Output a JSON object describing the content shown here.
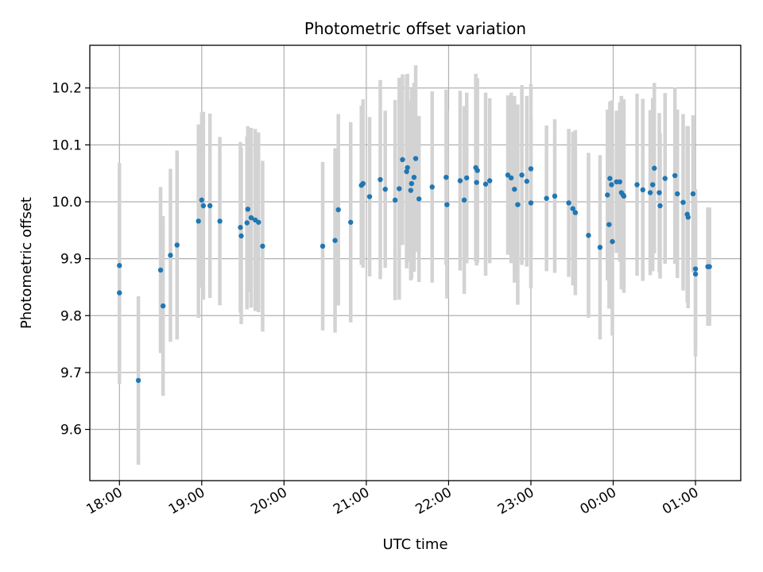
{
  "chart_data": {
    "type": "scatter",
    "title": "Photometric offset variation",
    "xlabel": "UTC time",
    "ylabel": "Photometric offset",
    "x_unit": "hours",
    "x_tick_values": [
      18,
      19,
      20,
      21,
      22,
      23,
      24,
      25
    ],
    "x_tick_labels": [
      "18:00",
      "19:00",
      "20:00",
      "21:00",
      "22:00",
      "23:00",
      "00:00",
      "01:00"
    ],
    "y_tick_values": [
      9.6,
      9.7,
      9.8,
      9.9,
      10.0,
      10.1,
      10.2
    ],
    "y_tick_labels": [
      "9.6",
      "9.7",
      "9.8",
      "9.9",
      "10.0",
      "10.1",
      "10.2"
    ],
    "xlim": [
      17.64,
      25.55
    ],
    "ylim": [
      9.51,
      10.275
    ],
    "grid": true,
    "point_color": "#1f77b4",
    "errorbar_color": "#d3d3d3",
    "points": [
      [
        18.0,
        9.84,
        0.16
      ],
      [
        18.0,
        9.888,
        0.18
      ],
      [
        18.23,
        9.686,
        0.148
      ],
      [
        18.5,
        9.88,
        0.146
      ],
      [
        18.53,
        9.817,
        0.158
      ],
      [
        18.62,
        9.906,
        0.152
      ],
      [
        18.7,
        9.924,
        0.166
      ],
      [
        18.96,
        9.966,
        0.17
      ],
      [
        19.0,
        10.003,
        0.154
      ],
      [
        19.02,
        9.993,
        0.165
      ],
      [
        19.1,
        9.993,
        0.162
      ],
      [
        19.22,
        9.966,
        0.148
      ],
      [
        19.47,
        9.955,
        0.15
      ],
      [
        19.48,
        9.94,
        0.155
      ],
      [
        19.55,
        9.963,
        0.152
      ],
      [
        19.56,
        9.987,
        0.146
      ],
      [
        19.6,
        9.972,
        0.158
      ],
      [
        19.65,
        9.968,
        0.16
      ],
      [
        19.69,
        9.964,
        0.158
      ],
      [
        19.74,
        9.922,
        0.15
      ],
      [
        20.47,
        9.922,
        0.148
      ],
      [
        20.62,
        9.932,
        0.162
      ],
      [
        20.66,
        9.986,
        0.168
      ],
      [
        20.81,
        9.964,
        0.176
      ],
      [
        20.94,
        10.029,
        0.14
      ],
      [
        20.96,
        10.032,
        0.148
      ],
      [
        21.04,
        10.009,
        0.14
      ],
      [
        21.17,
        10.039,
        0.175
      ],
      [
        21.23,
        10.022,
        0.138
      ],
      [
        21.35,
        10.003,
        0.176
      ],
      [
        21.4,
        10.023,
        0.195
      ],
      [
        21.44,
        10.074,
        0.15
      ],
      [
        21.49,
        10.053,
        0.17
      ],
      [
        21.5,
        10.06,
        0.165
      ],
      [
        21.54,
        10.02,
        0.158
      ],
      [
        21.55,
        10.032,
        0.168
      ],
      [
        21.58,
        10.043,
        0.166
      ],
      [
        21.6,
        10.076,
        0.164
      ],
      [
        21.64,
        10.005,
        0.146
      ],
      [
        21.8,
        10.026,
        0.168
      ],
      [
        21.97,
        10.043,
        0.154
      ],
      [
        21.98,
        9.995,
        0.165
      ],
      [
        22.14,
        10.037,
        0.158
      ],
      [
        22.19,
        10.003,
        0.165
      ],
      [
        22.22,
        10.042,
        0.15
      ],
      [
        22.33,
        10.06,
        0.165
      ],
      [
        22.35,
        10.055,
        0.162
      ],
      [
        22.34,
        10.034,
        0.146
      ],
      [
        22.45,
        10.031,
        0.161
      ],
      [
        22.5,
        10.037,
        0.145
      ],
      [
        22.72,
        10.047,
        0.14
      ],
      [
        22.76,
        10.042,
        0.15
      ],
      [
        22.8,
        10.022,
        0.164
      ],
      [
        22.84,
        9.995,
        0.176
      ],
      [
        22.89,
        10.047,
        0.158
      ],
      [
        22.95,
        10.036,
        0.15
      ],
      [
        23.0,
        10.058,
        0.149
      ],
      [
        23.0,
        9.998,
        0.15
      ],
      [
        23.19,
        10.006,
        0.128
      ],
      [
        23.29,
        10.01,
        0.135
      ],
      [
        23.46,
        9.998,
        0.13
      ],
      [
        23.51,
        9.988,
        0.135
      ],
      [
        23.54,
        9.981,
        0.145
      ],
      [
        23.7,
        9.941,
        0.145
      ],
      [
        23.84,
        9.92,
        0.162
      ],
      [
        23.93,
        10.012,
        0.15
      ],
      [
        23.95,
        9.96,
        0.148
      ],
      [
        23.96,
        10.041,
        0.135
      ],
      [
        23.98,
        10.03,
        0.148
      ],
      [
        23.99,
        9.93,
        0.165
      ],
      [
        24.04,
        10.035,
        0.125
      ],
      [
        24.08,
        10.035,
        0.14
      ],
      [
        24.1,
        10.016,
        0.17
      ],
      [
        24.12,
        10.012,
        0.145
      ],
      [
        24.13,
        10.01,
        0.17
      ],
      [
        24.29,
        10.03,
        0.16
      ],
      [
        24.36,
        10.021,
        0.16
      ],
      [
        24.45,
        10.016,
        0.145
      ],
      [
        24.48,
        10.03,
        0.152
      ],
      [
        24.5,
        10.059,
        0.15
      ],
      [
        24.56,
        10.016,
        0.14
      ],
      [
        24.57,
        9.993,
        0.128
      ],
      [
        24.63,
        10.041,
        0.15
      ],
      [
        24.75,
        10.046,
        0.155
      ],
      [
        24.78,
        10.014,
        0.148
      ],
      [
        24.85,
        9.999,
        0.155
      ],
      [
        24.9,
        9.978,
        0.155
      ],
      [
        24.91,
        9.973,
        0.16
      ],
      [
        24.97,
        10.014,
        0.138
      ],
      [
        25.0,
        9.873,
        0.145
      ],
      [
        25.0,
        9.882,
        0.14
      ],
      [
        25.15,
        9.886,
        0.104
      ],
      [
        25.17,
        9.886,
        0.104
      ]
    ]
  }
}
